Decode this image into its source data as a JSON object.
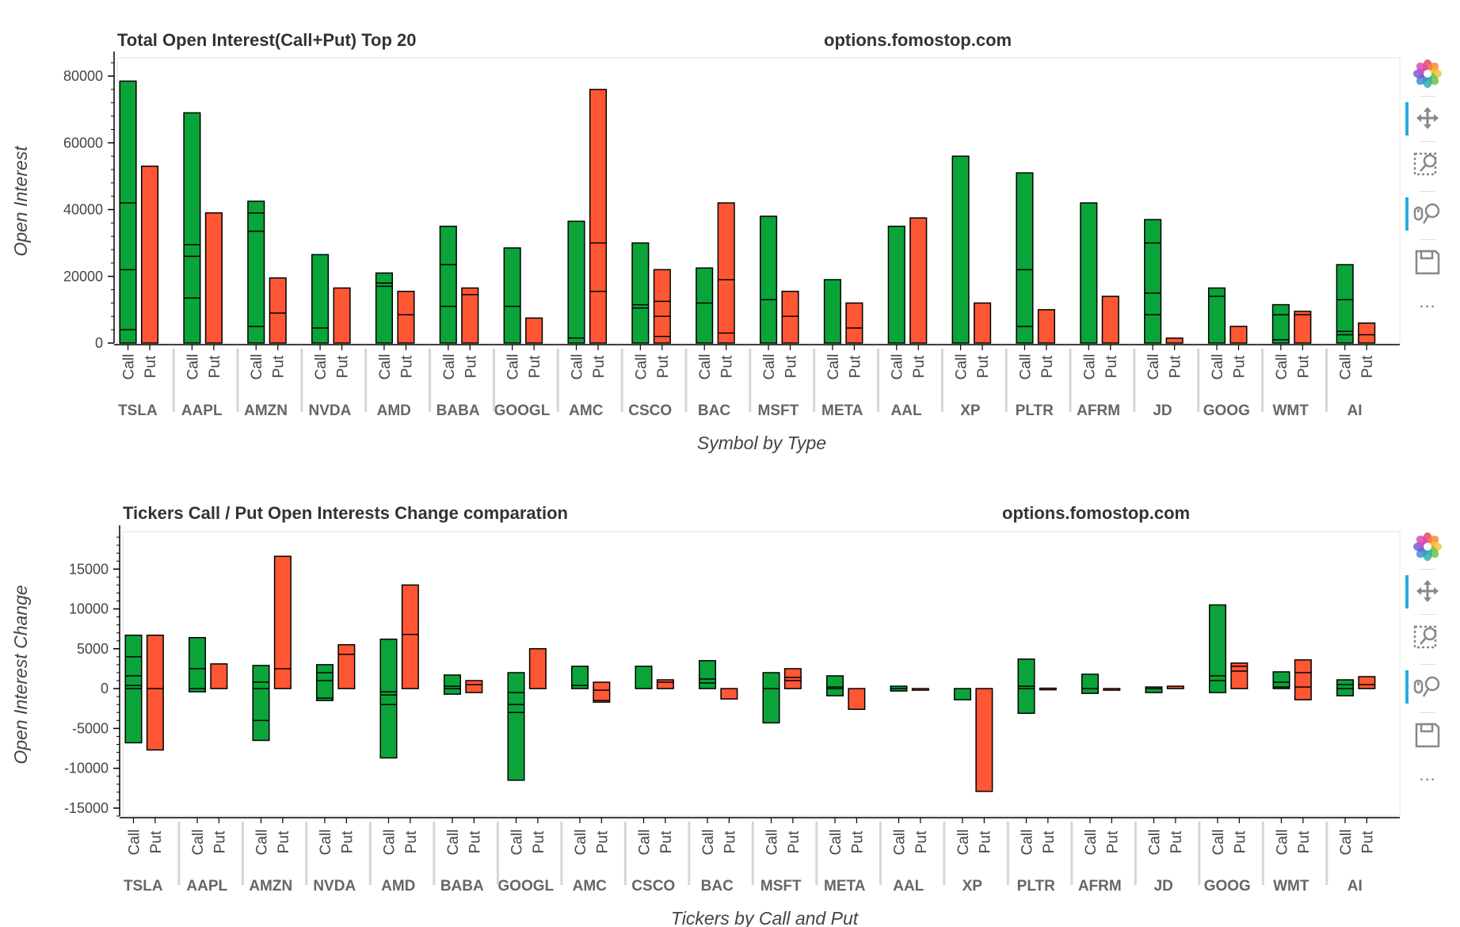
{
  "colors": {
    "call": "#0aa43a",
    "put": "#ff5733",
    "outline": "#000000",
    "frame": "#e5e5e5"
  },
  "toolbar": {
    "tools": [
      "bokeh-logo-icon",
      "pan-icon",
      "box-zoom-icon",
      "wheel-zoom-icon",
      "save-icon"
    ],
    "active": [
      "pan-icon",
      "wheel-zoom-icon"
    ],
    "more": "..."
  },
  "chart_data": [
    {
      "type": "bar",
      "title": "Total Open Interest(Call+Put) Top 20",
      "watermark": "options.fomostop.com",
      "xlabel": "Symbol by Type",
      "ylabel": "Open Interest",
      "ylim": [
        0,
        85000
      ],
      "yticks": [
        0,
        20000,
        40000,
        60000,
        80000
      ],
      "ytick_labels": [
        "0",
        "20000",
        "40000",
        "60000",
        "80000"
      ],
      "types": [
        "Call",
        "Put"
      ],
      "categories": [
        "TSLA",
        "AAPL",
        "AMZN",
        "NVDA",
        "AMD",
        "BABA",
        "GOOGL",
        "AMC",
        "CSCO",
        "BAC",
        "MSFT",
        "META",
        "AAL",
        "XP",
        "PLTR",
        "AFRM",
        "JD",
        "GOOG",
        "WMT",
        "AI"
      ],
      "series": [
        {
          "name": "Call",
          "values": [
            78500,
            69000,
            42500,
            26500,
            21000,
            35000,
            28500,
            36500,
            30000,
            22500,
            38000,
            19000,
            35000,
            56000,
            51000,
            42000,
            37000,
            16500,
            11500,
            23500
          ]
        },
        {
          "name": "Put",
          "values": [
            53000,
            39000,
            19500,
            16500,
            15500,
            16500,
            7500,
            76000,
            22000,
            42000,
            15500,
            12000,
            37500,
            12000,
            10000,
            14000,
            1500,
            5000,
            9500,
            6000
          ]
        }
      ],
      "segment_lines": [
        {
          "call": [
            4000,
            22000,
            42000
          ],
          "put": []
        },
        {
          "call": [
            13500,
            26000,
            29500
          ],
          "put": []
        },
        {
          "call": [
            5000,
            33500,
            39000
          ],
          "put": [
            9000
          ]
        },
        {
          "call": [
            4500
          ],
          "put": []
        },
        {
          "call": [
            17000,
            18000
          ],
          "put": [
            8500
          ]
        },
        {
          "call": [
            11000,
            23500
          ],
          "put": [
            14500
          ]
        },
        {
          "call": [
            11000
          ],
          "put": []
        },
        {
          "call": [
            1500
          ],
          "put": [
            15500,
            30000
          ]
        },
        {
          "call": [
            10500,
            11500
          ],
          "put": [
            2000,
            8000,
            12500
          ]
        },
        {
          "call": [
            12000
          ],
          "put": [
            3000,
            19000
          ]
        },
        {
          "call": [
            13000
          ],
          "put": [
            8000
          ]
        },
        {
          "call": [],
          "put": [
            4500
          ]
        },
        {
          "call": [],
          "put": []
        },
        {
          "call": [],
          "put": []
        },
        {
          "call": [
            5000,
            22000
          ],
          "put": []
        },
        {
          "call": [],
          "put": []
        },
        {
          "call": [
            8500,
            15000,
            30000
          ],
          "put": []
        },
        {
          "call": [
            14000
          ],
          "put": []
        },
        {
          "call": [
            1000,
            8500
          ],
          "put": [
            8500
          ]
        },
        {
          "call": [
            2500,
            3500,
            13000
          ],
          "put": [
            2500
          ]
        }
      ]
    },
    {
      "type": "bar",
      "title": "Tickers Call / Put Open Interests Change comparation",
      "watermark": "options.fomostop.com",
      "xlabel": "Tickers by Call and Put",
      "ylabel": "Open Interest Change",
      "ylim": [
        -16000,
        19500
      ],
      "yticks": [
        -15000,
        -10000,
        -5000,
        0,
        5000,
        10000,
        15000
      ],
      "ytick_labels": [
        "-15000",
        "-10000",
        "-5000",
        "0",
        "5000",
        "10000",
        "15000"
      ],
      "types": [
        "Call",
        "Put"
      ],
      "categories": [
        "TSLA",
        "AAPL",
        "AMZN",
        "NVDA",
        "AMD",
        "BABA",
        "GOOGL",
        "AMC",
        "CSCO",
        "BAC",
        "MSFT",
        "META",
        "AAL",
        "XP",
        "PLTR",
        "AFRM",
        "JD",
        "GOOG",
        "WMT",
        "AI"
      ],
      "series": [
        {
          "name": "Call",
          "ranges": [
            [
              -6800,
              6700
            ],
            [
              -400,
              6400
            ],
            [
              -6500,
              2900
            ],
            [
              -1500,
              3000
            ],
            [
              -8700,
              6200
            ],
            [
              -700,
              1700
            ],
            [
              -11500,
              2000
            ],
            [
              0,
              2800
            ],
            [
              0,
              2800
            ],
            [
              0,
              3500
            ],
            [
              -4300,
              2000
            ],
            [
              -900,
              1600
            ],
            [
              -300,
              300
            ],
            [
              -1400,
              0
            ],
            [
              -3100,
              3700
            ],
            [
              -600,
              1800
            ],
            [
              -500,
              200
            ],
            [
              -500,
              10500
            ],
            [
              0,
              2100
            ],
            [
              -900,
              1100
            ]
          ]
        },
        {
          "name": "Put",
          "ranges": [
            [
              -7700,
              6700
            ],
            [
              0,
              3100
            ],
            [
              0,
              16600
            ],
            [
              0,
              5500
            ],
            [
              0,
              13000
            ],
            [
              -500,
              1000
            ],
            [
              0,
              5000
            ],
            [
              -1700,
              800
            ],
            [
              0,
              1100
            ],
            [
              -1300,
              0
            ],
            [
              0,
              2500
            ],
            [
              -2600,
              0
            ],
            [
              -100,
              0
            ],
            [
              -12900,
              0
            ],
            [
              -50,
              50
            ],
            [
              -100,
              0
            ],
            [
              0,
              300
            ],
            [
              0,
              3200
            ],
            [
              -1400,
              3600
            ],
            [
              0,
              1500
            ]
          ]
        }
      ],
      "segment_lines": [
        {
          "call": [
            0,
            400,
            1600,
            4000
          ],
          "put": [
            0
          ]
        },
        {
          "call": [
            0,
            2500
          ],
          "put": []
        },
        {
          "call": [
            -4000,
            0,
            800
          ],
          "put": [
            2500
          ]
        },
        {
          "call": [
            -1200,
            1000,
            2000
          ],
          "put": [
            4300
          ]
        },
        {
          "call": [
            -2000,
            -800,
            -400
          ],
          "put": [
            6800
          ]
        },
        {
          "call": [
            0,
            300
          ],
          "put": [
            500
          ]
        },
        {
          "call": [
            -3000,
            -2000,
            -500
          ],
          "put": []
        },
        {
          "call": [
            400
          ],
          "put": [
            -1500,
            -200
          ]
        },
        {
          "call": [],
          "put": [
            800
          ]
        },
        {
          "call": [
            700,
            1200
          ],
          "put": []
        },
        {
          "call": [
            0
          ],
          "put": [
            1000,
            1400
          ]
        },
        {
          "call": [
            0,
            200
          ],
          "put": []
        },
        {
          "call": [
            0
          ],
          "put": []
        },
        {
          "call": [],
          "put": []
        },
        {
          "call": [
            0,
            300
          ],
          "put": []
        },
        {
          "call": [
            0
          ],
          "put": []
        },
        {
          "call": [
            0
          ],
          "put": []
        },
        {
          "call": [
            1000,
            1600
          ],
          "put": [
            2200,
            2800
          ]
        },
        {
          "call": [
            200,
            800
          ],
          "put": [
            200,
            2000
          ]
        },
        {
          "call": [
            0,
            500
          ],
          "put": [
            500
          ]
        }
      ]
    }
  ]
}
